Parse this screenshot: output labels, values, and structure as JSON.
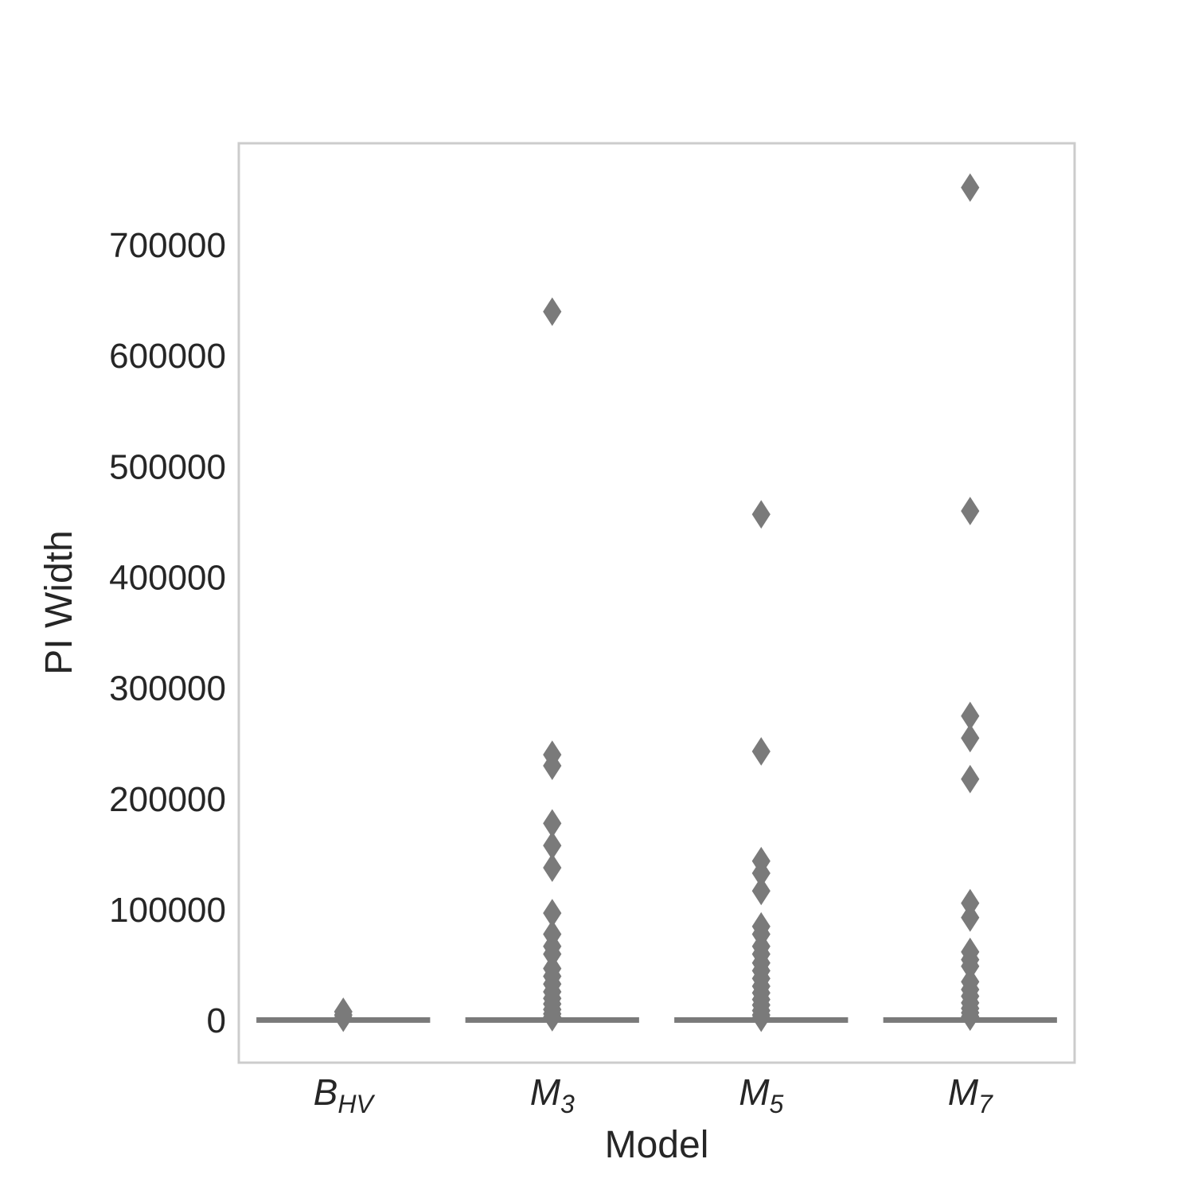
{
  "chart_data": {
    "type": "box",
    "xlabel": "Model",
    "ylabel": "PI Width",
    "ylim": [
      -38000,
      792000
    ],
    "yticks": [
      0,
      100000,
      200000,
      300000,
      400000,
      500000,
      600000,
      700000
    ],
    "ytick_labels": [
      "0",
      "100000",
      "200000",
      "300000",
      "400000",
      "500000",
      "600000",
      "700000"
    ],
    "grid": false,
    "colors": {
      "box": "#7a7a7a",
      "frame": "#cccccc",
      "text": "#262626"
    },
    "categories": [
      {
        "base": "B",
        "sub": "HV"
      },
      {
        "base": "M",
        "sub": "3"
      },
      {
        "base": "M",
        "sub": "5"
      },
      {
        "base": "M",
        "sub": "7"
      }
    ],
    "boxes": [
      {
        "q1": 0,
        "median": 500,
        "q3": 1000,
        "whisker_low": 0,
        "whisker_high": 2000,
        "outliers": [
          8000,
          5000,
          2500
        ]
      },
      {
        "q1": 0,
        "median": 500,
        "q3": 1000,
        "whisker_low": 0,
        "whisker_high": 2000,
        "outliers": [
          640000,
          240000,
          230000,
          178000,
          158000,
          138000,
          97000,
          78000,
          67000,
          60000,
          47000,
          40000,
          33000,
          26000,
          20000,
          15000,
          10000,
          6000,
          3000
        ]
      },
      {
        "q1": 0,
        "median": 500,
        "q3": 1000,
        "whisker_low": 0,
        "whisker_high": 2000,
        "outliers": [
          457000,
          243000,
          144000,
          133000,
          117000,
          85000,
          78000,
          67000,
          60000,
          52000,
          45000,
          38000,
          31000,
          25000,
          19000,
          14000,
          9000,
          5000,
          2500
        ]
      },
      {
        "q1": 0,
        "median": 500,
        "q3": 1000,
        "whisker_low": 0,
        "whisker_high": 2000,
        "outliers": [
          752000,
          460000,
          275000,
          255000,
          218000,
          106000,
          93000,
          62000,
          55000,
          49000,
          35000,
          28000,
          22000,
          16000,
          11000,
          7000,
          3500
        ]
      }
    ]
  }
}
